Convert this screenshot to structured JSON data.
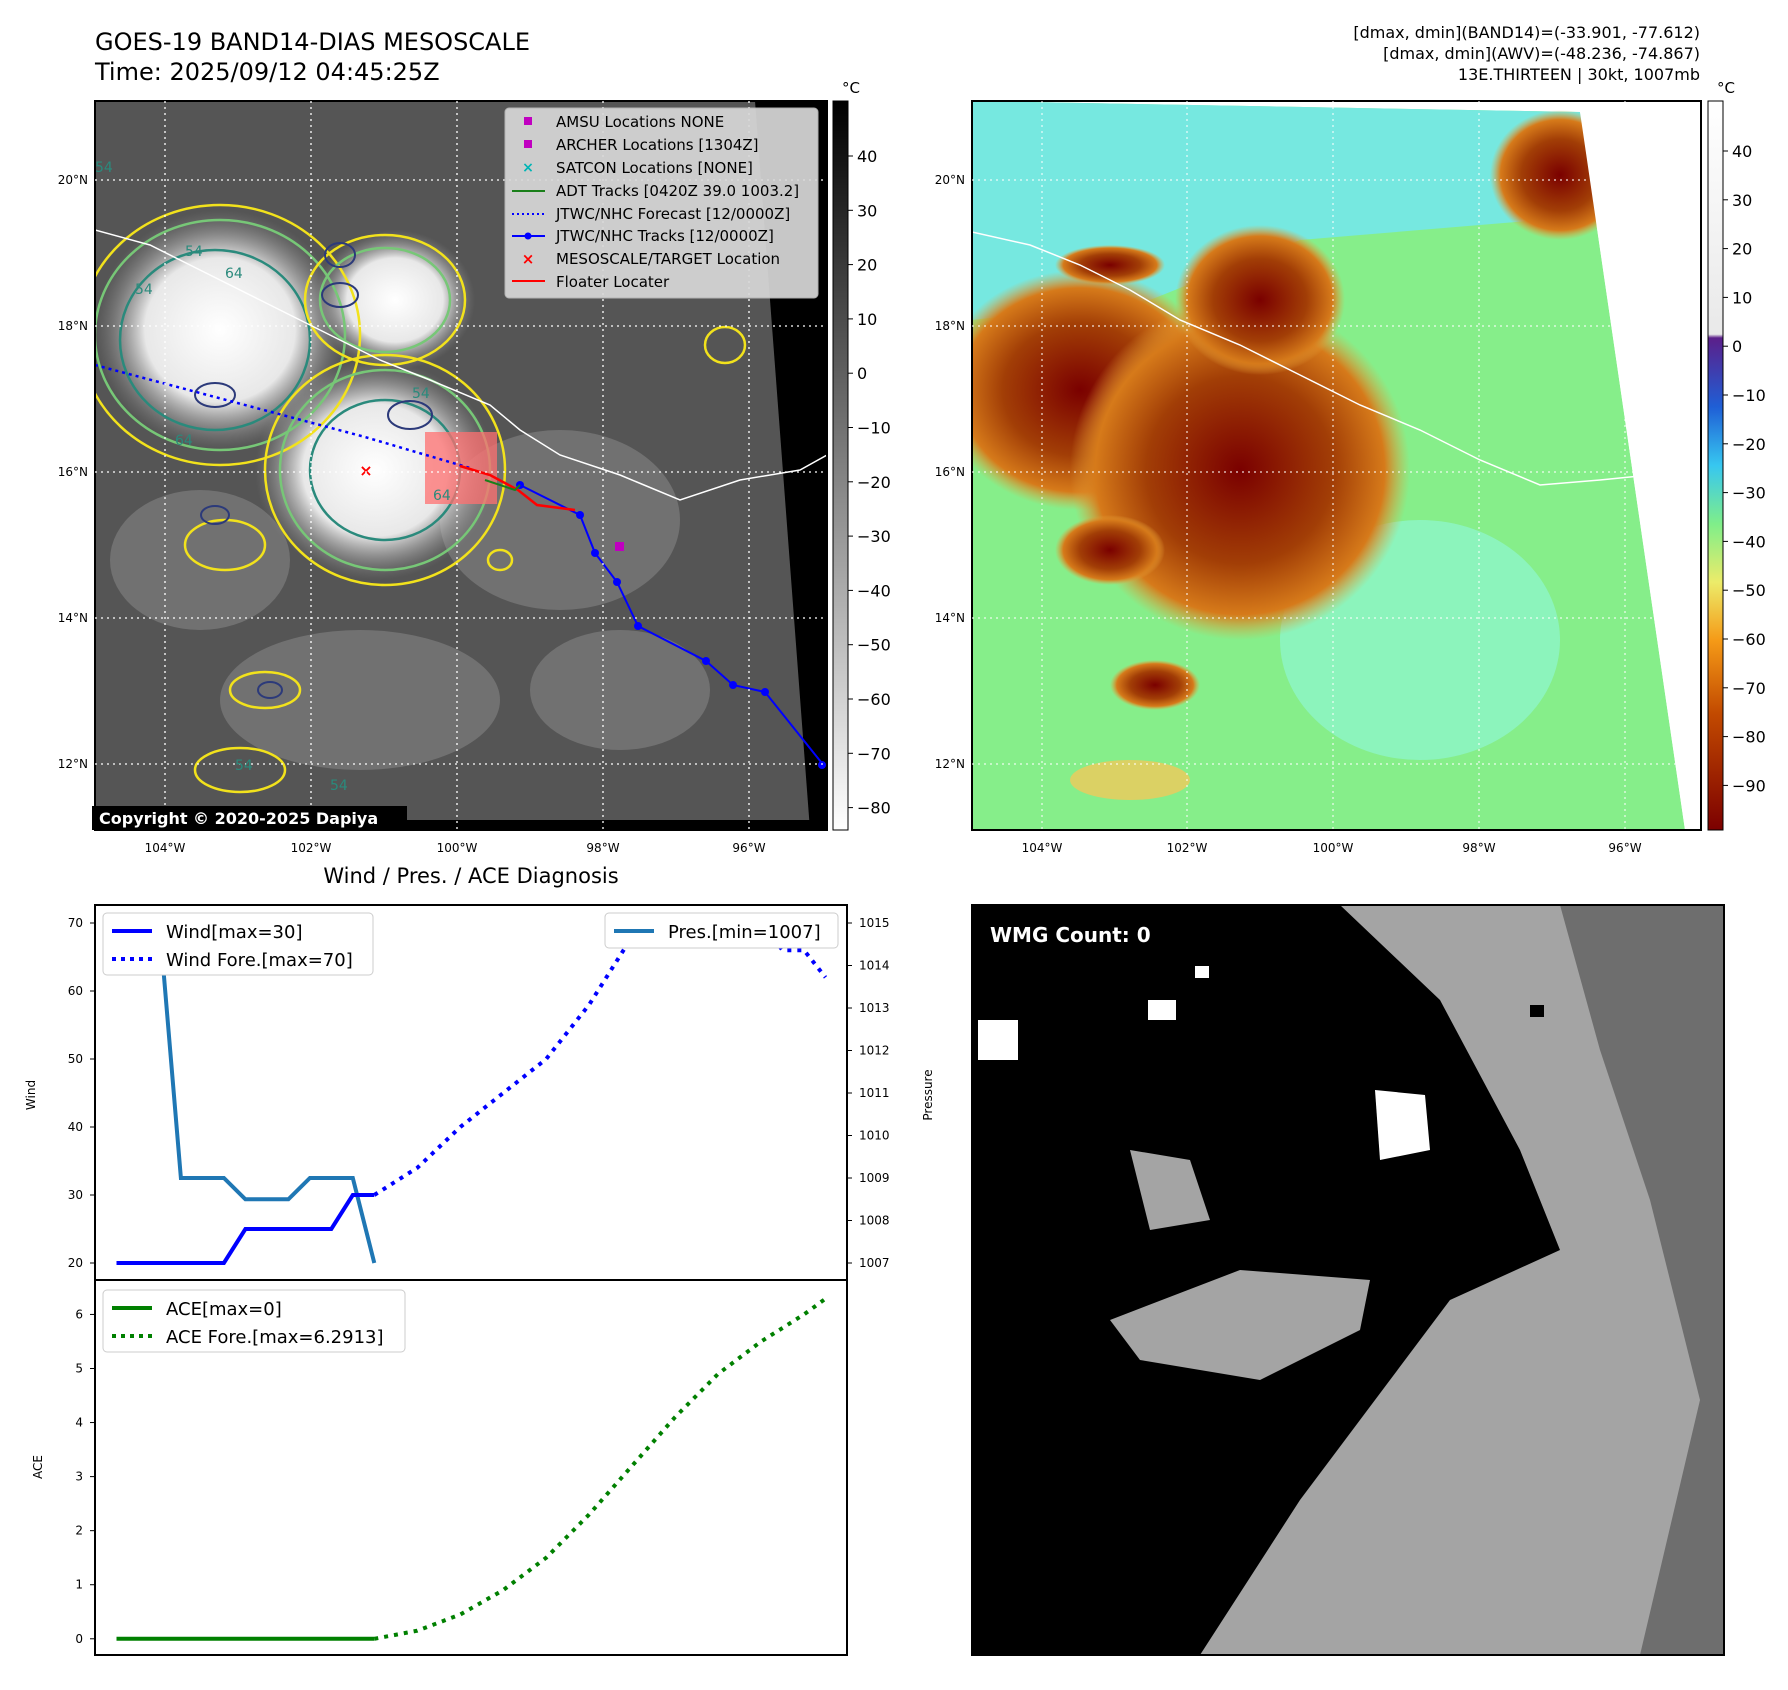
{
  "header": {
    "title_line1": "GOES-19 BAND14-DIAS MESOSCALE",
    "title_line2": "Time: 2025/09/12 04:45:25Z",
    "stats_line1": "[dmax, dmin](BAND14)=(-33.901, -77.612)",
    "stats_line2": "[dmax, dmin](AWV)=(-48.236, -74.867)",
    "stats_line3": "13E.THIRTEEN | 30kt, 1007mb"
  },
  "ir_panel": {
    "lon_ticks": [
      "104°W",
      "102°W",
      "100°W",
      "98°W",
      "96°W"
    ],
    "lat_ticks": [
      "20°N",
      "18°N",
      "16°N",
      "14°N",
      "12°N"
    ],
    "colorbar_unit": "°C",
    "colorbar_ticks": [
      "40",
      "30",
      "20",
      "10",
      "0",
      "−10",
      "−20",
      "−30",
      "−40",
      "−50",
      "−60",
      "−70",
      "−80"
    ],
    "copyright": "Copyright © 2020-2025 Dapiya",
    "legend": [
      {
        "label": "AMSU Locations NONE",
        "color": "#c000c0",
        "marker": "square"
      },
      {
        "label": "ARCHER Locations [1304Z]",
        "color": "#c000c0",
        "marker": "square"
      },
      {
        "label": "SATCON Locations [NONE]",
        "color": "#00b5b5",
        "marker": "x"
      },
      {
        "label": "ADT Tracks [0420Z 39.0 1003.2]",
        "color": "#1a7f1a",
        "marker": "line"
      },
      {
        "label": "JTWC/NHC Forecast [12/0000Z]",
        "color": "#0000ff",
        "marker": "dotted"
      },
      {
        "label": "JTWC/NHC Tracks [12/0000Z]",
        "color": "#0000ff",
        "marker": "line-dot"
      },
      {
        "label": "MESOSCALE/TARGET Location",
        "color": "#ff0000",
        "marker": "x"
      },
      {
        "label": "Floater Locater",
        "color": "#ff0000",
        "marker": "line"
      }
    ],
    "contour_labels": [
      "54",
      "64",
      "64",
      "54",
      "54",
      "64",
      "54",
      "54",
      "54"
    ]
  },
  "awv_panel": {
    "lon_ticks": [
      "104°W",
      "102°W",
      "100°W",
      "98°W",
      "96°W"
    ],
    "lat_ticks": [
      "20°N",
      "18°N",
      "16°N",
      "14°N",
      "12°N"
    ],
    "colorbar_unit": "°C",
    "colorbar_ticks": [
      "40",
      "30",
      "20",
      "10",
      "0",
      "−10",
      "−20",
      "−30",
      "−40",
      "−50",
      "−60",
      "−70",
      "−80",
      "−90"
    ]
  },
  "diag_title": "Wind / Pres. / ACE Diagnosis",
  "wmg_label": "WMG Count: 0",
  "chart_data": [
    {
      "type": "line",
      "panel": "wind-pressure",
      "ylabel": "Wind",
      "y2label": "Pressure",
      "ylim": [
        20,
        70
      ],
      "y2lim": [
        1007,
        1015
      ],
      "yticks": [
        "20",
        "30",
        "40",
        "50",
        "60",
        "70"
      ],
      "y2ticks": [
        "1007",
        "1008",
        "1009",
        "1010",
        "1011",
        "1012",
        "1013",
        "1014",
        "1015"
      ],
      "series": [
        {
          "name": "Wind[max=30]",
          "color": "#0000ff",
          "style": "solid",
          "x": [
            0,
            1,
            2,
            3,
            4,
            5,
            6,
            7,
            8,
            9,
            10,
            11,
            12
          ],
          "values": [
            20,
            20,
            20,
            20,
            20,
            20,
            25,
            25,
            25,
            25,
            25,
            30,
            30
          ]
        },
        {
          "name": "Wind Fore.[max=70]",
          "color": "#0000ff",
          "style": "dotted",
          "x": [
            12,
            14,
            16,
            18,
            20,
            22,
            24,
            26,
            28,
            30,
            31,
            32,
            33
          ],
          "values": [
            30,
            34,
            40,
            45,
            50,
            58,
            68,
            70,
            70,
            70,
            66,
            66,
            62
          ]
        },
        {
          "name": "Pres.[min=1007]",
          "color": "#1f77b4",
          "style": "solid",
          "axis": "y2",
          "x": [
            0,
            1,
            2,
            3,
            4,
            5,
            6,
            7,
            8,
            9,
            10,
            11,
            12
          ],
          "values": [
            1015,
            1015,
            1015,
            1009,
            1009,
            1009,
            1008.5,
            1008.5,
            1008.5,
            1009,
            1009,
            1009,
            1007
          ]
        }
      ],
      "xlim": [
        -1,
        34
      ]
    },
    {
      "type": "line",
      "panel": "ace",
      "ylabel": "ACE",
      "ylim": [
        -0.3,
        6.6
      ],
      "yticks": [
        "0",
        "1",
        "2",
        "3",
        "4",
        "5",
        "6"
      ],
      "series": [
        {
          "name": "ACE[max=0]",
          "color": "#008000",
          "style": "solid",
          "x": [
            0,
            12
          ],
          "values": [
            0,
            0
          ]
        },
        {
          "name": "ACE Fore.[max=6.2913]",
          "color": "#008000",
          "style": "dotted",
          "x": [
            12,
            14,
            16,
            18,
            20,
            22,
            24,
            26,
            28,
            30,
            32,
            33
          ],
          "values": [
            0,
            0.15,
            0.45,
            0.9,
            1.5,
            2.3,
            3.2,
            4.1,
            4.9,
            5.5,
            6.0,
            6.2913
          ]
        }
      ],
      "xlim": [
        -1,
        34
      ]
    }
  ]
}
